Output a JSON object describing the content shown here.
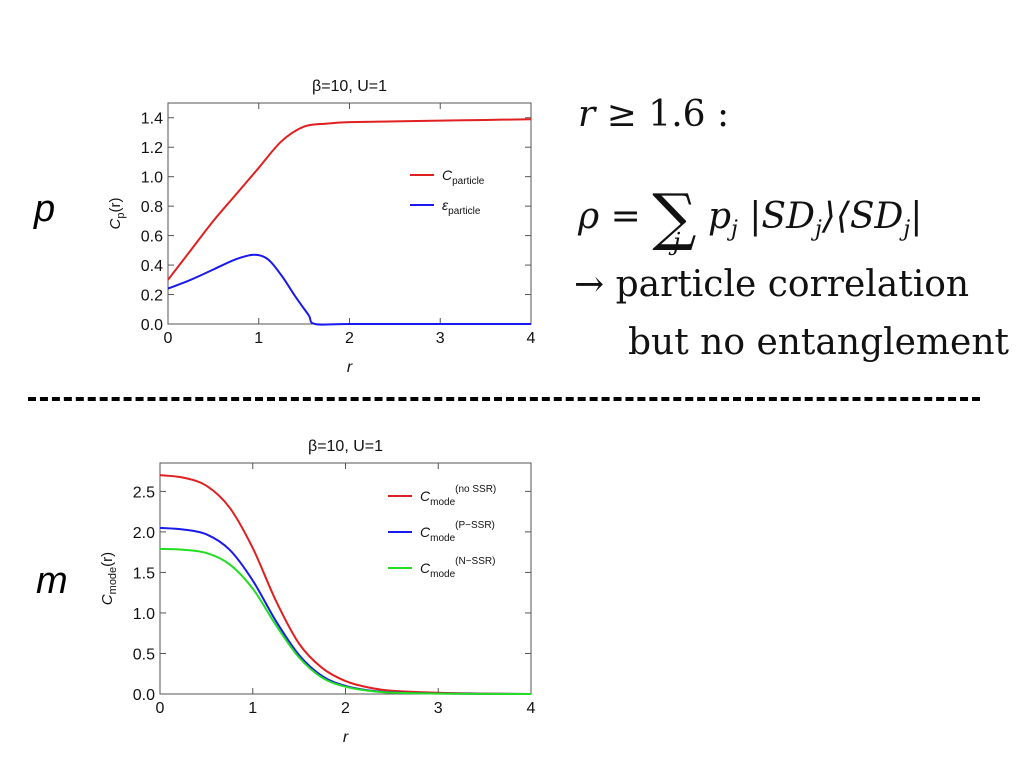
{
  "panels": {
    "top_label": "p",
    "bottom_label": "m"
  },
  "equation": {
    "condition_r": "r",
    "condition_op": "≥",
    "condition_value": "1.6 :",
    "rho": "ρ",
    "equals": "=",
    "sum": "∑",
    "sum_index": "j",
    "p_j": "p",
    "p_sub": "j",
    "ket": "|SD",
    "ket_sub": "j",
    "bra": "⟩⟨SD",
    "bra_sub": "j",
    "bar": "|",
    "arrow_line": "→ particle correlation",
    "second_line": "but no entanglement"
  },
  "chart_data": [
    {
      "type": "line",
      "title": "β=10, U=1",
      "xlabel": "r",
      "ylabel_main": "C",
      "ylabel_sub": "p",
      "ylabel_tail": "(r)",
      "xlim": [
        0,
        4
      ],
      "ylim": [
        0,
        1.5
      ],
      "xticks": [
        0,
        1,
        2,
        3,
        4
      ],
      "yticks": [
        "0.0",
        "0.2",
        "0.4",
        "0.6",
        "0.8",
        "1.0",
        "1.2",
        "1.4"
      ],
      "legend_position": "middle-right",
      "series": [
        {
          "name": "C",
          "name_sub": "particle",
          "color": "#e02020",
          "x": [
            0,
            0.25,
            0.5,
            0.75,
            1.0,
            1.25,
            1.5,
            1.75,
            2.0,
            2.5,
            3.0,
            3.5,
            4.0
          ],
          "y": [
            0.3,
            0.5,
            0.7,
            0.88,
            1.06,
            1.24,
            1.34,
            1.36,
            1.37,
            1.375,
            1.38,
            1.385,
            1.39
          ]
        },
        {
          "name": "ε",
          "name_sub": "particle",
          "color": "#1a1aee",
          "x": [
            0,
            0.25,
            0.5,
            0.75,
            0.95,
            1.1,
            1.25,
            1.4,
            1.55,
            1.62,
            2.0,
            3.0,
            4.0
          ],
          "y": [
            0.24,
            0.3,
            0.37,
            0.44,
            0.47,
            0.44,
            0.33,
            0.19,
            0.06,
            0.0,
            0.0,
            0.0,
            0.0
          ]
        }
      ]
    },
    {
      "type": "line",
      "title": "β=10, U=1",
      "xlabel": "r",
      "ylabel_main": "C",
      "ylabel_sub": "mode",
      "ylabel_tail": "(r)",
      "xlim": [
        0,
        4
      ],
      "ylim": [
        0,
        2.85
      ],
      "xticks": [
        0,
        1,
        2,
        3,
        4
      ],
      "yticks": [
        "0.0",
        "0.5",
        "1.0",
        "1.5",
        "2.0",
        "2.5"
      ],
      "legend_position": "top-right",
      "series": [
        {
          "name": "C",
          "name_sub": "mode",
          "name_sup": "(no SSR)",
          "color": "#e02020",
          "x": [
            0,
            0.25,
            0.5,
            0.75,
            1.0,
            1.25,
            1.5,
            1.75,
            2.0,
            2.25,
            2.5,
            3.0,
            3.5,
            4.0
          ],
          "y": [
            2.7,
            2.67,
            2.57,
            2.3,
            1.8,
            1.15,
            0.62,
            0.32,
            0.16,
            0.08,
            0.04,
            0.015,
            0.005,
            0.0
          ]
        },
        {
          "name": "C",
          "name_sub": "mode",
          "name_sup": "(P−SSR)",
          "color": "#1a1aee",
          "x": [
            0,
            0.25,
            0.5,
            0.75,
            1.0,
            1.25,
            1.5,
            1.75,
            2.0,
            2.25,
            2.5,
            3.0,
            3.5,
            4.0
          ],
          "y": [
            2.05,
            2.03,
            1.97,
            1.78,
            1.4,
            0.9,
            0.48,
            0.22,
            0.1,
            0.045,
            0.02,
            0.006,
            0.002,
            0.0
          ]
        },
        {
          "name": "C",
          "name_sub": "mode",
          "name_sup": "(N−SSR)",
          "color": "#22dd22",
          "x": [
            0,
            0.25,
            0.5,
            0.75,
            1.0,
            1.25,
            1.5,
            1.75,
            2.0,
            2.25,
            2.5,
            3.0,
            3.5,
            4.0
          ],
          "y": [
            1.79,
            1.78,
            1.74,
            1.6,
            1.3,
            0.85,
            0.45,
            0.2,
            0.09,
            0.04,
            0.017,
            0.005,
            0.001,
            0.0
          ]
        }
      ]
    }
  ]
}
